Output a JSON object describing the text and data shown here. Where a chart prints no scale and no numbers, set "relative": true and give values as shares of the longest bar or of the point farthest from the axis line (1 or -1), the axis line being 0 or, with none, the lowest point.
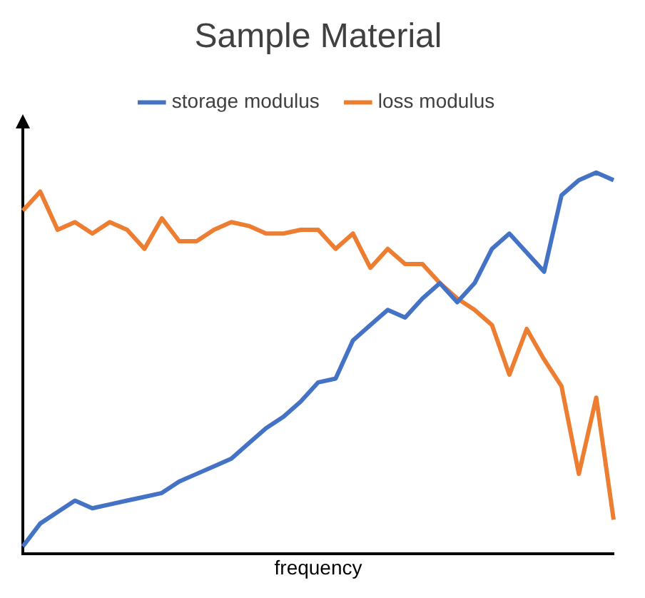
{
  "chart_data": {
    "type": "line",
    "title": "Sample Material",
    "xlabel": "frequency",
    "relative": true,
    "legend": "top",
    "grid": false,
    "marker": "none",
    "tick_labels": false,
    "categories": [
      null,
      null,
      null,
      null,
      null,
      null,
      null,
      null,
      null,
      null,
      null,
      null,
      null,
      null,
      null,
      null,
      null,
      null,
      null,
      null,
      null,
      null,
      null,
      null,
      null,
      null,
      null,
      null,
      null,
      null,
      null,
      null,
      null,
      null,
      null
    ],
    "series": [
      {
        "name": "storage modulus",
        "color": "#4472c4",
        "values": [
          0.02,
          0.08,
          0.11,
          0.14,
          0.12,
          0.13,
          0.14,
          0.15,
          0.16,
          0.19,
          0.21,
          0.23,
          0.25,
          0.29,
          0.33,
          0.36,
          0.4,
          0.45,
          0.46,
          0.56,
          0.6,
          0.64,
          0.62,
          0.67,
          0.71,
          0.66,
          0.71,
          0.8,
          0.84,
          0.79,
          0.74,
          0.94,
          0.98,
          1,
          0.98
        ]
      },
      {
        "name": "loss modulus",
        "color": "#ed7d31",
        "values": [
          0.9,
          0.95,
          0.85,
          0.87,
          0.84,
          0.87,
          0.85,
          0.8,
          0.88,
          0.82,
          0.82,
          0.85,
          0.87,
          0.86,
          0.84,
          0.84,
          0.85,
          0.85,
          0.8,
          0.84,
          0.75,
          0.8,
          0.76,
          0.76,
          0.71,
          0.67,
          0.64,
          0.6,
          0.47,
          0.59,
          0.51,
          0.44,
          0.21,
          0.41,
          0.09
        ]
      }
    ]
  }
}
